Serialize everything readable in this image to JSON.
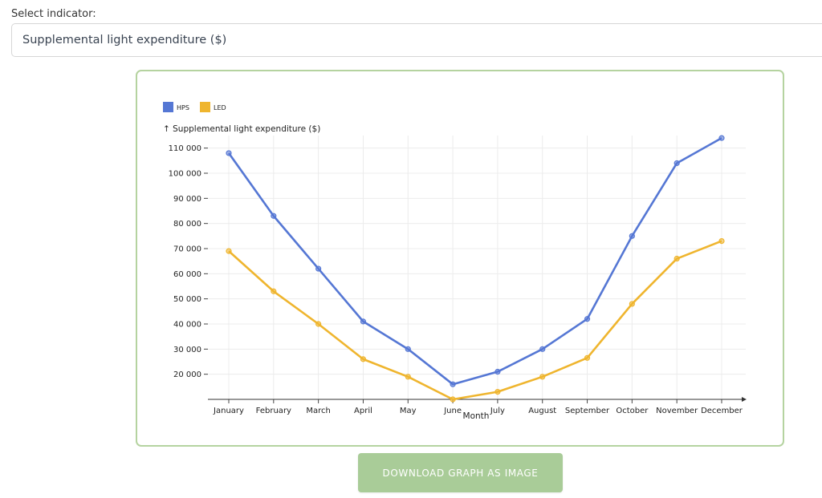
{
  "selector": {
    "label": "Select indicator:",
    "value": "Supplemental light expenditure ($)"
  },
  "download_button": {
    "label": "DOWNLOAD GRAPH AS IMAGE"
  },
  "colors": {
    "hps": "#5577d4",
    "led": "#efb52e",
    "card_border": "#b5d3a0",
    "button": "#a9cc98"
  },
  "chart_data": {
    "type": "line",
    "ylabel": "↑ Supplemental light expenditure ($)",
    "xlabel": "Month",
    "categories": [
      "January",
      "February",
      "March",
      "April",
      "May",
      "June",
      "July",
      "August",
      "September",
      "October",
      "November",
      "December"
    ],
    "ylim": [
      10000,
      115000
    ],
    "yticks": [
      20000,
      30000,
      40000,
      50000,
      60000,
      70000,
      80000,
      90000,
      100000,
      110000
    ],
    "ytick_labels": [
      "20 000",
      "30 000",
      "40 000",
      "50 000",
      "60 000",
      "70 000",
      "80 000",
      "90 000",
      "100 000",
      "110 000"
    ],
    "grid": true,
    "legend_position": "top-left",
    "series": [
      {
        "name": "HPS",
        "color": "#5577d4",
        "values": [
          108000,
          83000,
          62000,
          41000,
          30000,
          16000,
          21000,
          30000,
          42000,
          75000,
          104000,
          114000
        ]
      },
      {
        "name": "LED",
        "color": "#efb52e",
        "values": [
          69000,
          53000,
          40000,
          26000,
          19000,
          10000,
          13000,
          19000,
          26500,
          48000,
          66000,
          73000
        ]
      }
    ]
  }
}
